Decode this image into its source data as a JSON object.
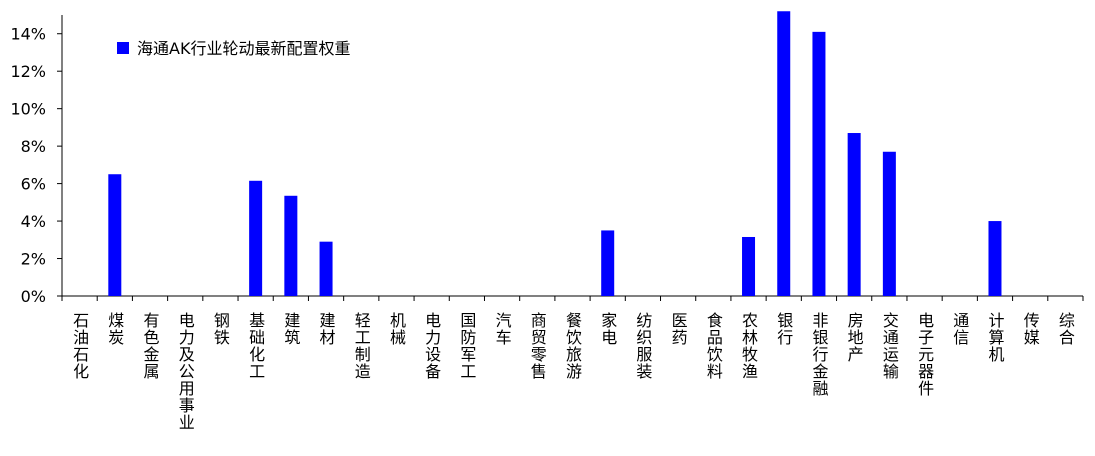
{
  "chart_data": {
    "type": "bar",
    "legend": "海通AK行业轮动最新配置权重",
    "categories": [
      "石油石化",
      "煤炭",
      "有色金属",
      "电力及公用事业",
      "钢铁",
      "基础化工",
      "建筑",
      "建材",
      "轻工制造",
      "机械",
      "电力设备",
      "国防军工",
      "汽车",
      "商贸零售",
      "餐饮旅游",
      "家电",
      "纺织服装",
      "医药",
      "食品饮料",
      "农林牧渔",
      "银行",
      "非银行金融",
      "房地产",
      "交通运输",
      "电子元器件",
      "通信",
      "计算机",
      "传媒",
      "综合"
    ],
    "values": [
      0,
      6.5,
      0,
      0,
      0,
      6.15,
      5.35,
      2.9,
      0,
      0,
      0,
      0,
      0,
      0,
      0,
      3.5,
      0,
      0,
      0,
      3.15,
      15.2,
      14.1,
      8.7,
      7.7,
      0,
      0,
      4.0,
      0,
      0
    ],
    "color": "#0000ff",
    "ylim": [
      0,
      15
    ],
    "yticks": [
      {
        "value": 0,
        "label": "0%"
      },
      {
        "value": 2,
        "label": "2%"
      },
      {
        "value": 4,
        "label": "4%"
      },
      {
        "value": 6,
        "label": "6%"
      },
      {
        "value": 8,
        "label": "8%"
      },
      {
        "value": 10,
        "label": "10%"
      },
      {
        "value": 12,
        "label": "12%"
      },
      {
        "value": 14,
        "label": "14%"
      }
    ]
  }
}
